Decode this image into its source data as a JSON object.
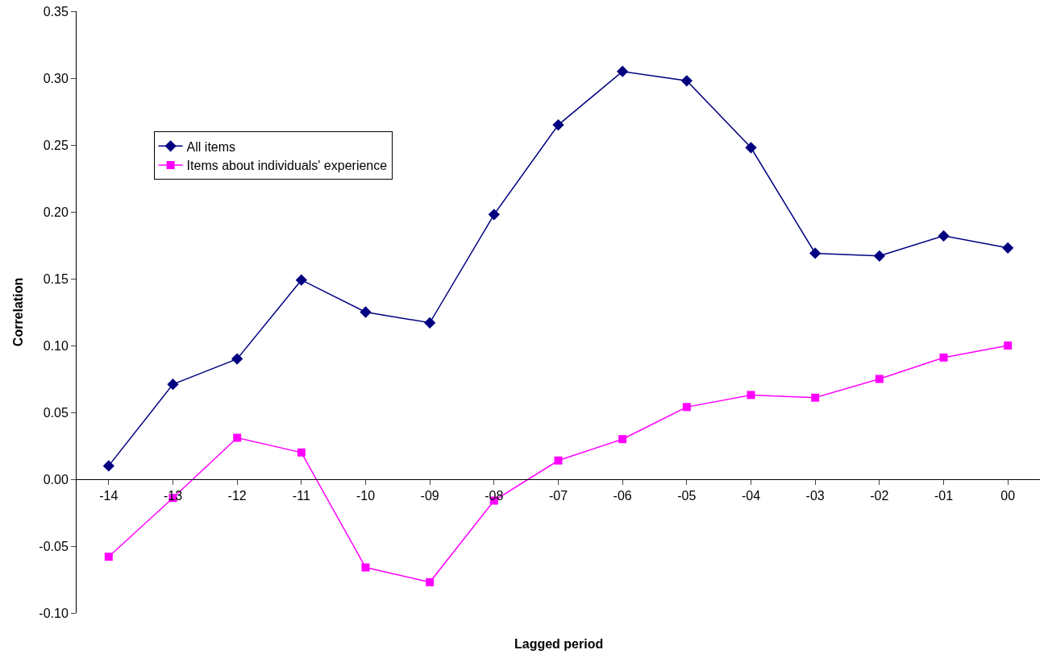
{
  "chart_data": {
    "type": "line",
    "xlabel": "Lagged period",
    "ylabel": "Correlation",
    "categories": [
      "-14",
      "-13",
      "-12",
      "-11",
      "-10",
      "-09",
      "-08",
      "-07",
      "-06",
      "-05",
      "-04",
      "-03",
      "-02",
      "-01",
      "00"
    ],
    "series": [
      {
        "name": "All items",
        "color": "#000080",
        "marker": "diamond",
        "values": [
          0.01,
          0.071,
          0.09,
          0.149,
          0.125,
          0.117,
          0.198,
          0.265,
          0.305,
          0.298,
          0.248,
          0.169,
          0.167,
          0.182,
          0.173
        ]
      },
      {
        "name": "Items about individuals' experience",
        "color": "#ff00ff",
        "marker": "square",
        "values": [
          -0.058,
          -0.014,
          0.031,
          0.02,
          -0.066,
          -0.077,
          -0.016,
          0.014,
          0.03,
          0.054,
          0.063,
          0.061,
          0.075,
          0.091,
          0.1
        ]
      }
    ],
    "ylim": [
      -0.1,
      0.35
    ],
    "yticks": [
      {
        "value": -0.1,
        "label": "-0.10"
      },
      {
        "value": -0.05,
        "label": "-0.05"
      },
      {
        "value": 0,
        "label": "0.00"
      },
      {
        "value": 0.05,
        "label": "0.05"
      },
      {
        "value": 0.1,
        "label": "0.10"
      },
      {
        "value": 0.15,
        "label": "0.15"
      },
      {
        "value": 0.2,
        "label": "0.20"
      },
      {
        "value": 0.25,
        "label": "0.25"
      },
      {
        "value": 0.3,
        "label": "0.30"
      },
      {
        "value": 0.35,
        "label": "0.35"
      }
    ],
    "grid": false,
    "legend": "top left",
    "line_style": "solid"
  }
}
